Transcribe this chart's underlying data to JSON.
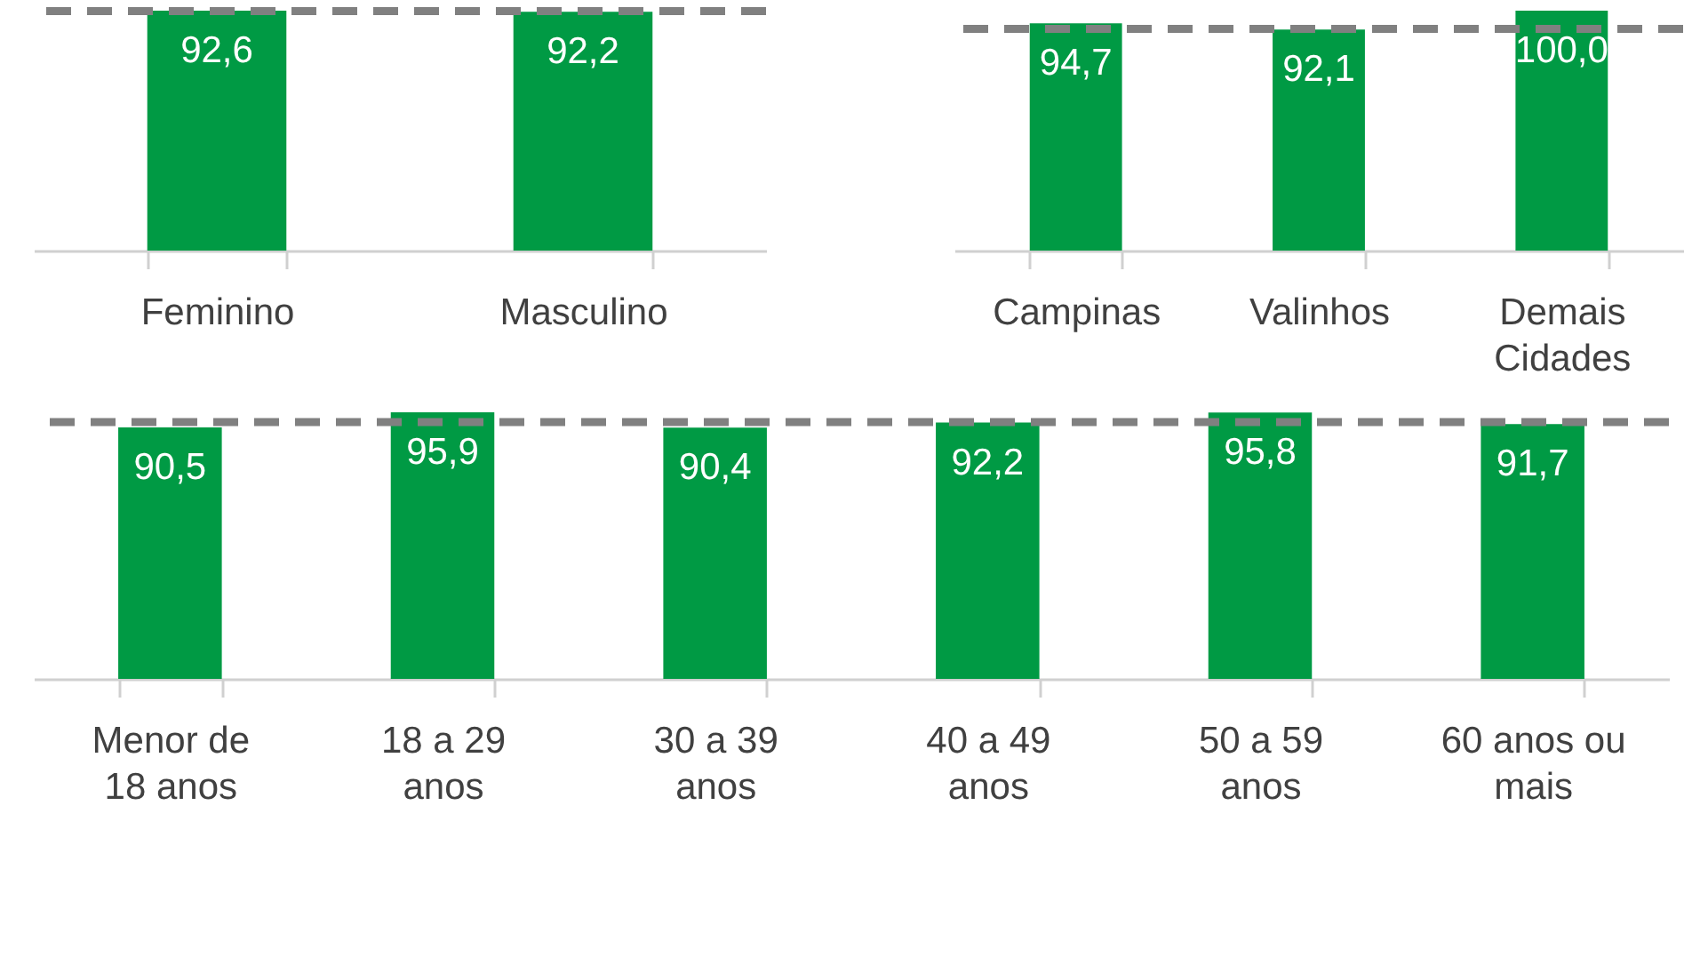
{
  "chart_data": [
    {
      "type": "bar",
      "categories": [
        "Feminino",
        "Masculino"
      ],
      "values": [
        92.6,
        92.2
      ],
      "value_labels": [
        "92,6",
        "92,2"
      ],
      "color": "#009a44",
      "tick_labels": "x",
      "ref_lines": [
        {
          "axis": "y",
          "value": 92.4,
          "color": "#808080",
          "line_style": "dashed"
        }
      ]
    },
    {
      "type": "bar",
      "categories": [
        "Campinas",
        "Valinhos",
        "Demais Cidades"
      ],
      "values": [
        94.7,
        92.1,
        100.0
      ],
      "value_labels": [
        "94,7",
        "92,1",
        "100,0"
      ],
      "color": "#009a44",
      "tick_labels": "x",
      "ref_lines": [
        {
          "axis": "y",
          "value": 92.4,
          "color": "#808080",
          "line_style": "dashed"
        }
      ]
    },
    {
      "type": "bar",
      "categories": [
        "Menor de 18 anos",
        "18 a 29 anos",
        "30 a 39 anos",
        "40 a 49 anos",
        "50 a 59 anos",
        "60 anos ou mais"
      ],
      "values": [
        90.5,
        95.9,
        90.4,
        92.2,
        95.8,
        91.7
      ],
      "value_labels": [
        "90,5",
        "95,9",
        "90,4",
        "92,2",
        "95,8",
        "91,7"
      ],
      "color": "#009a44",
      "tick_labels": "x",
      "ref_lines": [
        {
          "axis": "y",
          "value": 92.4,
          "color": "#808080",
          "line_style": "dashed"
        }
      ]
    }
  ]
}
